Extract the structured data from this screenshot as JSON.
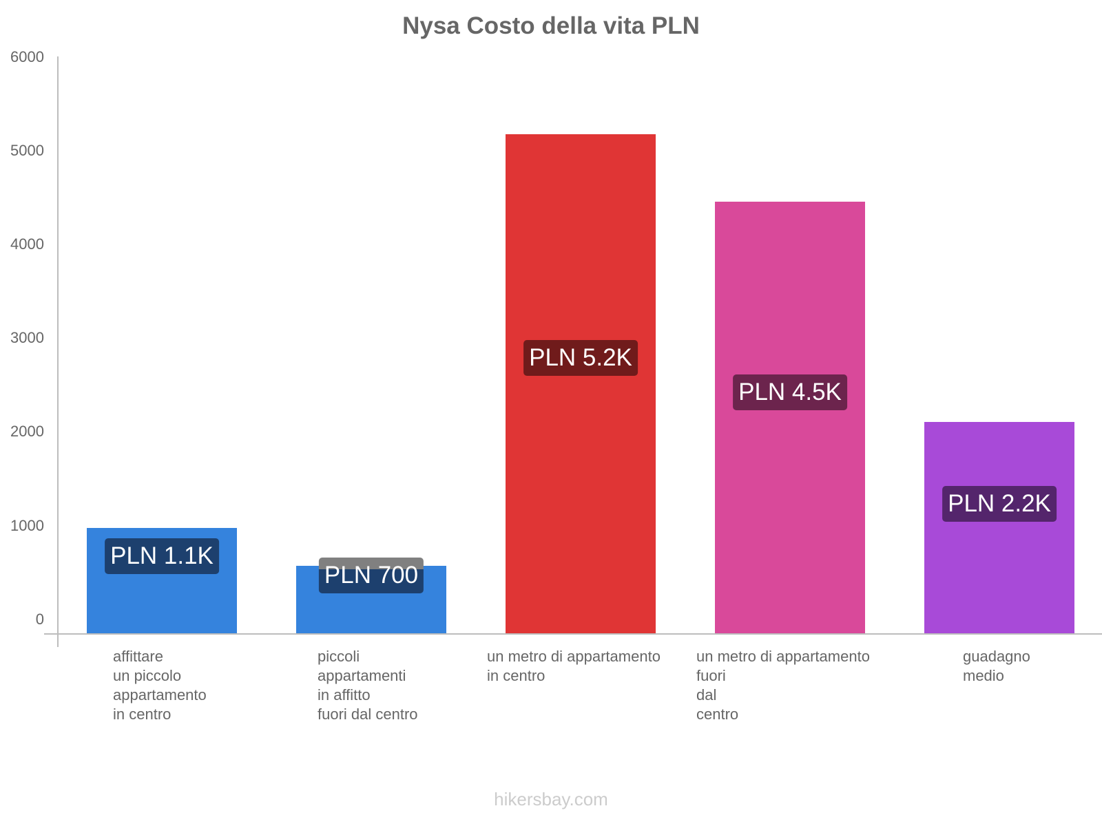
{
  "chart_data": {
    "type": "bar",
    "title": "Nysa Costo della vita PLN",
    "xlabel": "",
    "ylabel": "",
    "ylim": [
      0,
      6000
    ],
    "yticks": [
      0,
      1000,
      2000,
      3000,
      4000,
      5000,
      6000
    ],
    "grid": false,
    "legend": null,
    "categories": [
      "affittare un piccolo appartamento in centro",
      "piccoli appartamenti in affitto fuori dal centro",
      "un metro di appartamento in centro",
      "un metro di appartamento fuori dal centro",
      "guadagno medio"
    ],
    "values": [
      1100,
      700,
      5200,
      4500,
      2200
    ],
    "data_labels": [
      "PLN 1.1K",
      "PLN 700",
      "PLN 5.2K",
      "PLN 4.5K",
      "PLN 2.2K"
    ],
    "colors": [
      "#3583dd",
      "#3583dd",
      "#e03535",
      "#d9499a",
      "#a84ad8"
    ],
    "label_bg_colors": [
      "#1d406e",
      "#1d406e",
      "#701b1b",
      "#6c244d",
      "#54256c"
    ]
  },
  "display": {
    "title": "Nysa Costo della vita PLN",
    "yticks": [
      "6000",
      "5000",
      "4000",
      "3000",
      "2000",
      "1000",
      "0"
    ],
    "xlabels": [
      "affittare\nun piccolo\nappartamento\nin centro",
      "piccoli\nappartamenti\nin affitto\nfuori dal centro",
      "un metro di appartamento\nin centro",
      "un metro di appartamento\nfuori\ndal\ncentro",
      "guadagno\nmedio"
    ],
    "footer": "hikersbay.com"
  }
}
